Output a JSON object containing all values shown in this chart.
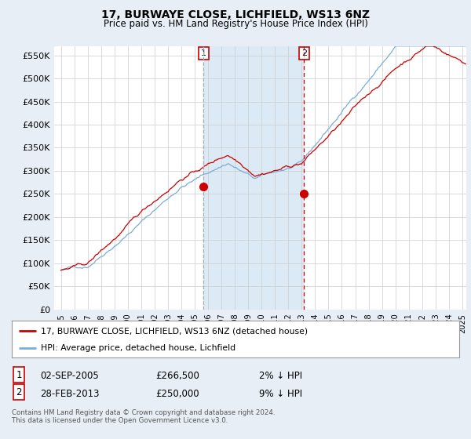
{
  "title": "17, BURWAYE CLOSE, LICHFIELD, WS13 6NZ",
  "subtitle": "Price paid vs. HM Land Registry's House Price Index (HPI)",
  "ylabel_ticks": [
    "£0",
    "£50K",
    "£100K",
    "£150K",
    "£200K",
    "£250K",
    "£300K",
    "£350K",
    "£400K",
    "£450K",
    "£500K",
    "£550K"
  ],
  "ytick_values": [
    0,
    50000,
    100000,
    150000,
    200000,
    250000,
    300000,
    350000,
    400000,
    450000,
    500000,
    550000
  ],
  "ylim": [
    0,
    570000
  ],
  "xlim_start": 1994.5,
  "xlim_end": 2025.3,
  "sale1_x": 2005.67,
  "sale1_y": 266500,
  "sale1_label": "1",
  "sale2_x": 2013.17,
  "sale2_y": 250000,
  "sale2_label": "2",
  "legend_line1": "17, BURWAYE CLOSE, LICHFIELD, WS13 6NZ (detached house)",
  "legend_line2": "HPI: Average price, detached house, Lichfield",
  "footer": "Contains HM Land Registry data © Crown copyright and database right 2024.\nThis data is licensed under the Open Government Licence v3.0.",
  "red_line_color": "#cc0000",
  "blue_line_color": "#7aaddc",
  "shaded_color": "#dceaf5",
  "background_color": "#e8eef5",
  "plot_bg_color": "#ffffff",
  "grid_color": "#cccccc",
  "vline1_color": "#aaaaaa",
  "vline2_color": "#cc0000"
}
